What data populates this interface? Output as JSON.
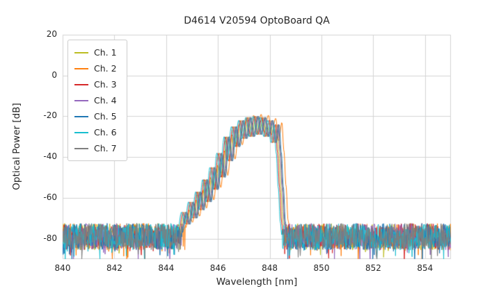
{
  "chart_data": {
    "type": "line",
    "title": "D4614 V20594 OptoBoard QA",
    "xlabel": "Wavelength [nm]",
    "ylabel": "Optical Power [dB]",
    "xlim": [
      840,
      855
    ],
    "ylim": [
      -90,
      20
    ],
    "xticks": [
      840,
      842,
      844,
      846,
      848,
      850,
      852,
      854
    ],
    "yticks": [
      20,
      0,
      -20,
      -40,
      -60,
      -80
    ],
    "grid": true,
    "legend_position": "upper-left",
    "noise_floor": {
      "mean_db": -79,
      "spread_db": 13,
      "deep_spike_probability": 0.06,
      "deep_spike_extra_db": 10,
      "sample_step_nm": 0.02
    },
    "spectrum_center_nm": 847.3,
    "spectrum_peak_db": -20,
    "envelope_shape": [
      [
        -2.7,
        -76
      ],
      [
        -2.56,
        -67
      ],
      [
        -2.43,
        -73
      ],
      [
        -2.29,
        -62
      ],
      [
        -2.16,
        -70
      ],
      [
        -2.01,
        -57
      ],
      [
        -1.89,
        -66
      ],
      [
        -1.74,
        -51
      ],
      [
        -1.61,
        -62
      ],
      [
        -1.46,
        -45
      ],
      [
        -1.34,
        -56
      ],
      [
        -1.19,
        -38
      ],
      [
        -1.07,
        -50
      ],
      [
        -0.91,
        -30
      ],
      [
        -0.79,
        -42
      ],
      [
        -0.63,
        -25
      ],
      [
        -0.51,
        -35
      ],
      [
        -0.35,
        -22
      ],
      [
        -0.23,
        -31
      ],
      [
        -0.07,
        -20.5
      ],
      [
        0.06,
        -30
      ],
      [
        0.22,
        -20
      ],
      [
        0.34,
        -29
      ],
      [
        0.5,
        -20.5
      ],
      [
        0.62,
        -30
      ],
      [
        0.78,
        -22
      ],
      [
        0.9,
        -33
      ],
      [
        1.02,
        -24
      ],
      [
        1.1,
        -38
      ],
      [
        1.18,
        -55
      ],
      [
        1.26,
        -72
      ],
      [
        1.34,
        -84
      ]
    ],
    "series": [
      {
        "name": "Ch. 1",
        "color": "#bcbd22",
        "shift_nm": -0.05,
        "db_offset": 0
      },
      {
        "name": "Ch. 2",
        "color": "#ff7f0e",
        "shift_nm": 0.15,
        "db_offset": 1
      },
      {
        "name": "Ch. 3",
        "color": "#d62728",
        "shift_nm": -0.1,
        "db_offset": 0
      },
      {
        "name": "Ch. 4",
        "color": "#9467bd",
        "shift_nm": 0.0,
        "db_offset": 0
      },
      {
        "name": "Ch. 5",
        "color": "#1f77b4",
        "shift_nm": 0.05,
        "db_offset": 0
      },
      {
        "name": "Ch. 6",
        "color": "#17becf",
        "shift_nm": -0.15,
        "db_offset": 0
      },
      {
        "name": "Ch. 7",
        "color": "#7f7f7f",
        "shift_nm": 0.02,
        "db_offset": 0
      }
    ],
    "grid_color": "#d4d4d4",
    "background_color": "#ffffff"
  }
}
